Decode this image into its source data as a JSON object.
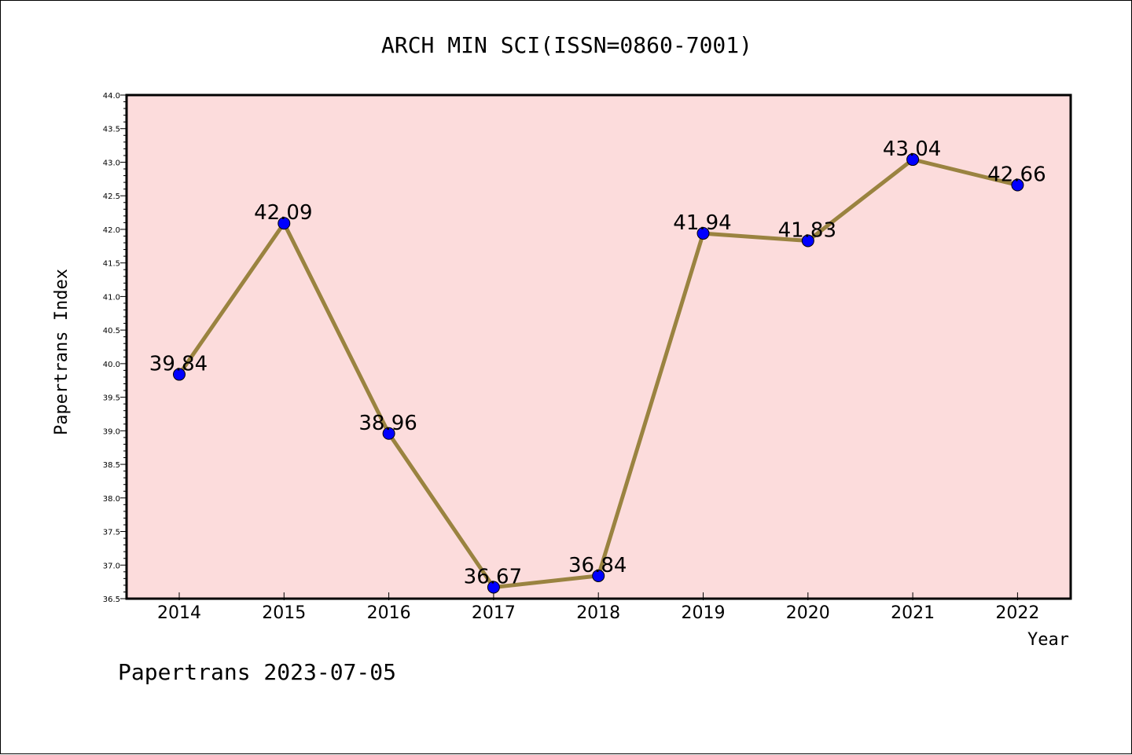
{
  "chart_data": {
    "type": "line",
    "title": "ARCH MIN SCI(ISSN=0860-7001)",
    "xlabel": "Year",
    "ylabel": "Papertrans Index",
    "categories": [
      "2014",
      "2015",
      "2016",
      "2017",
      "2018",
      "2019",
      "2020",
      "2021",
      "2022"
    ],
    "series": [
      {
        "values": [
          39.84,
          42.09,
          38.96,
          36.67,
          36.84,
          41.94,
          41.83,
          43.04,
          42.66
        ]
      }
    ],
    "data_labels": [
      "39.84",
      "42.09",
      "38.96",
      "36.67",
      "36.84",
      "41.94",
      "41.83",
      "43.04",
      "42.66"
    ],
    "ylim": [
      36.5,
      44.0
    ],
    "ytick_labels": [
      "36.5",
      "37.0",
      "37.5",
      "38.0",
      "38.5",
      "39.0",
      "39.5",
      "40.0",
      "40.5",
      "41.0",
      "41.5",
      "42.0",
      "42.5",
      "43.0",
      "43.5",
      "44.0"
    ],
    "grid": false,
    "colors": {
      "plot_background": "#fcdcdc",
      "line": "#9a8340",
      "marker": "#0000ff"
    }
  },
  "footer": "Papertrans 2023-07-05"
}
